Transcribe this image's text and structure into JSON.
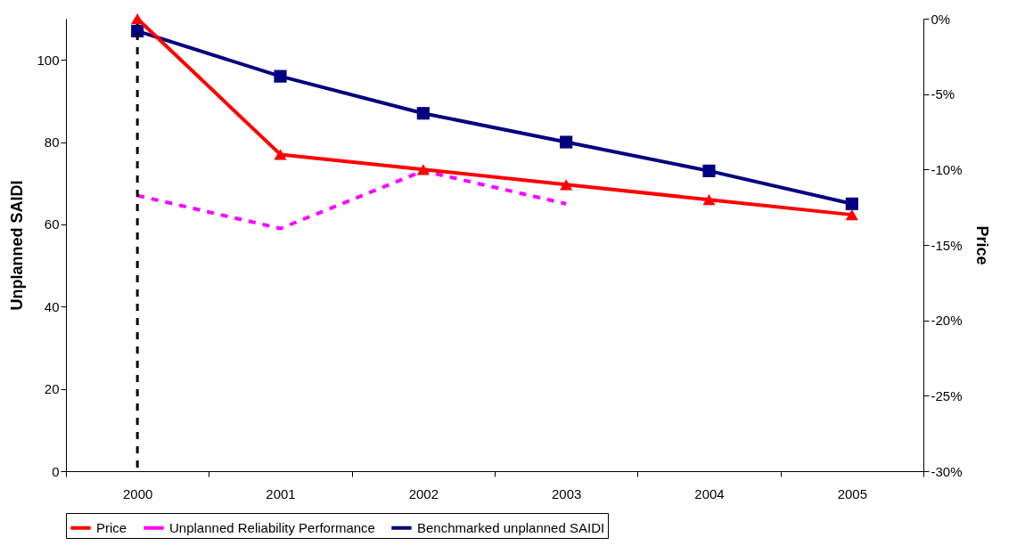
{
  "chart_data": {
    "type": "line",
    "ylabel": "Unplanned SAIDI",
    "y2label": "Price",
    "categories": [
      "2000",
      "2001",
      "2002",
      "2003",
      "2004",
      "2005"
    ],
    "series": [
      {
        "name": "Price",
        "color": "#ff0000",
        "axis": "y2",
        "marker": "triangle",
        "line_style": "solid",
        "values": [
          0,
          -9,
          -10,
          -11,
          -12,
          -13
        ]
      },
      {
        "name": "Unplanned Reliability Performance",
        "color": "#ff00ff",
        "marker": "none",
        "line_style": "dashed",
        "values": [
          67,
          59,
          73,
          65,
          null,
          null
        ]
      },
      {
        "name": "Benchmarked unplanned SAIDI",
        "color": "#000080",
        "marker": "square",
        "line_style": "solid",
        "values": [
          107,
          96,
          87,
          80,
          73,
          65
        ]
      }
    ],
    "ylim": [
      0,
      110
    ],
    "yticks": [
      0,
      20,
      40,
      60,
      80,
      100
    ],
    "y2lim": [
      -30,
      0
    ],
    "y2ticks": [
      {
        "value": -30,
        "label": "-30%"
      },
      {
        "value": -25,
        "label": "-25%"
      },
      {
        "value": -20,
        "label": "-20%"
      },
      {
        "value": -15,
        "label": "-15%"
      },
      {
        "value": -10,
        "label": "-10%"
      },
      {
        "value": -5,
        "label": "-5%"
      },
      {
        "value": 0,
        "label": "0%"
      }
    ],
    "ref_lines": [
      {
        "axis": "x",
        "value": "2000",
        "color": "#000000",
        "line_style": "dashed"
      }
    ],
    "grid": false,
    "legend": "bottom"
  }
}
